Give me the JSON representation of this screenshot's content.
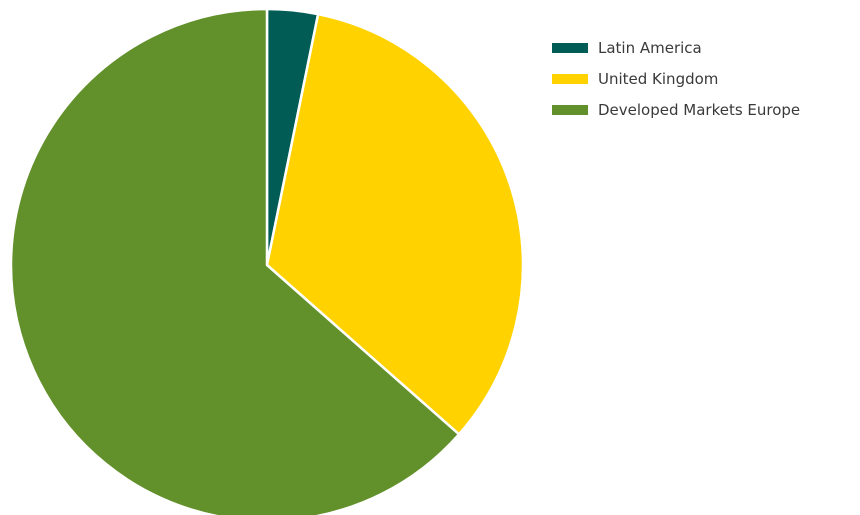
{
  "chart_data": {
    "type": "pie",
    "title": "",
    "series": [
      {
        "name": "Latin America",
        "value": 3.2,
        "color": "#005c55"
      },
      {
        "name": "United Kingdom",
        "value": 33.3,
        "color": "#ffd200"
      },
      {
        "name": "Developed Markets Europe",
        "value": 63.5,
        "color": "#62902a"
      }
    ],
    "legend_position": "top-right"
  }
}
